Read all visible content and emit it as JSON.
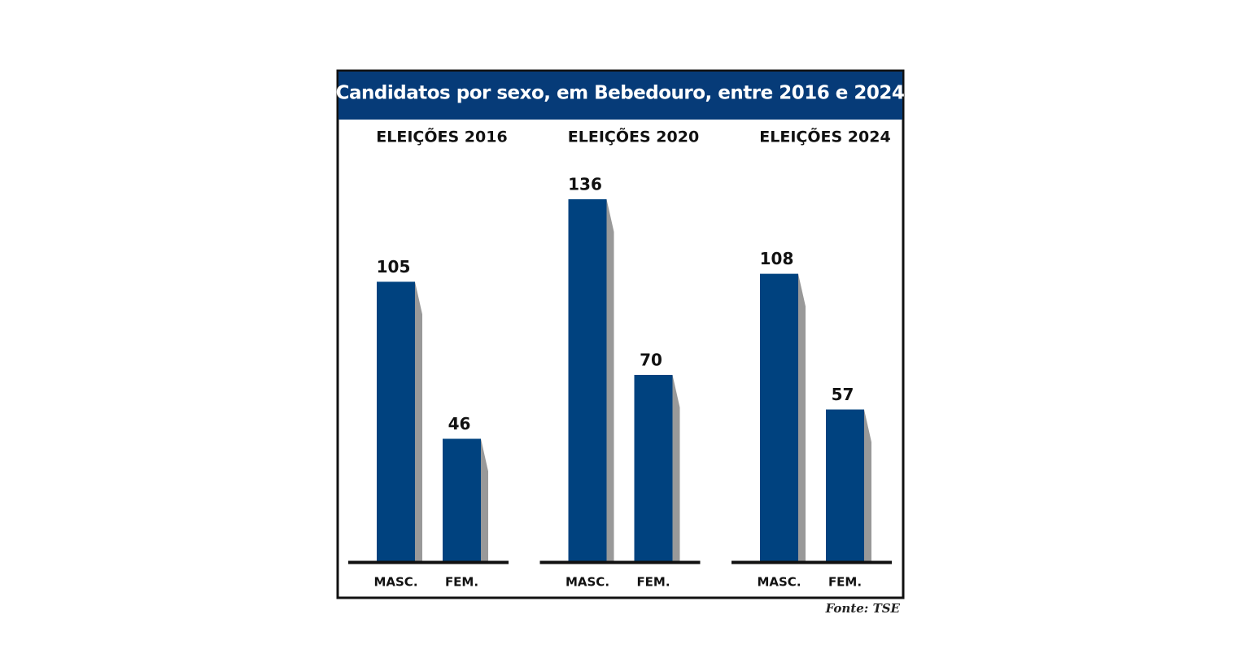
{
  "title": "Candidatos por sexo, em Bebedouro, entre 2016 e 2024",
  "source": "Fonte: TSE",
  "chart_data": [
    {
      "type": "bar",
      "title": "ELEIÇÕES 2016",
      "categories": [
        "MASC.",
        "FEM."
      ],
      "values": [
        105,
        46
      ],
      "color": "#00427f"
    },
    {
      "type": "bar",
      "title": "ELEIÇÕES 2020",
      "categories": [
        "MASC.",
        "FEM."
      ],
      "values": [
        136,
        70
      ],
      "color": "#00427f"
    },
    {
      "type": "bar",
      "title": "ELEIÇÕES 2024",
      "categories": [
        "MASC.",
        "FEM."
      ],
      "values": [
        108,
        57
      ],
      "color": "#00427f"
    }
  ]
}
